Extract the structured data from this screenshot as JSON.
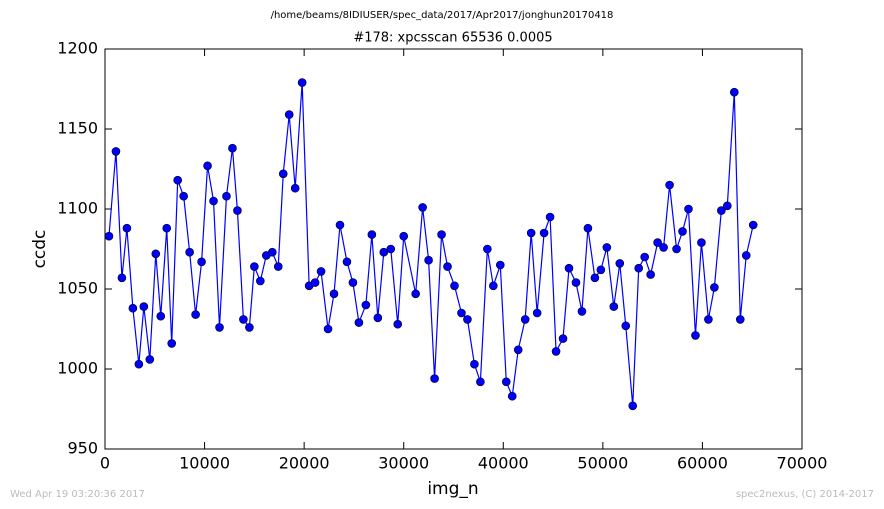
{
  "chart_data": {
    "type": "line",
    "title": "/home/beams/8IDIUSER/spec_data/2017/Apr2017/jonghun20170418",
    "subtitle": "#178: xpcsscan 65536 0.0005",
    "xlabel": "img_n",
    "ylabel": "ccdc",
    "footer_left": "Wed Apr 19 03:20:36 2017",
    "footer_right": "spec2nexus, (C) 2014-2017",
    "xlim": [
      0,
      70000
    ],
    "xticks": [
      0,
      10000,
      20000,
      30000,
      40000,
      50000,
      60000,
      70000
    ],
    "ylim": [
      950,
      1200
    ],
    "yticks": [
      950,
      1000,
      1050,
      1100,
      1150,
      1200
    ],
    "grid": false,
    "x": [
      400,
      1100,
      1700,
      2200,
      2800,
      3400,
      3900,
      4500,
      5100,
      5600,
      6200,
      6700,
      7300,
      7900,
      8500,
      9100,
      9700,
      10300,
      10900,
      11500,
      12200,
      12800,
      13300,
      13900,
      14500,
      15000,
      15600,
      16200,
      16800,
      17400,
      17900,
      18500,
      19100,
      19800,
      20500,
      21100,
      21700,
      22400,
      23000,
      23600,
      24300,
      24900,
      25500,
      26200,
      26800,
      27400,
      28000,
      28700,
      29400,
      30000,
      31200,
      31900,
      32500,
      33100,
      33800,
      34400,
      35100,
      35800,
      36400,
      37100,
      37700,
      38400,
      39000,
      39700,
      40300,
      40900,
      41500,
      42200,
      42800,
      43400,
      44100,
      44700,
      45300,
      46000,
      46600,
      47300,
      47900,
      48500,
      49200,
      49800,
      50400,
      51100,
      51700,
      52300,
      53000,
      53600,
      54200,
      54800,
      55500,
      56100,
      56700,
      57400,
      58000,
      58600,
      59300,
      59900,
      60600,
      61200,
      61900,
      62500,
      63200,
      63800,
      64400,
      65100
    ],
    "series": [
      {
        "color": "#0000ff",
        "marker_color": "#0000ff",
        "values": [
          1083,
          1136,
          1057,
          1088,
          1038,
          1003,
          1039,
          1006,
          1072,
          1033,
          1088,
          1016,
          1118,
          1108,
          1073,
          1034,
          1067,
          1127,
          1105,
          1026,
          1108,
          1138,
          1099,
          1031,
          1026,
          1064,
          1055,
          1071,
          1073,
          1064,
          1122,
          1159,
          1113,
          1179,
          1052,
          1054,
          1061,
          1025,
          1047,
          1090,
          1067,
          1054,
          1029,
          1040,
          1084,
          1032,
          1073,
          1075,
          1028,
          1083,
          1047,
          1101,
          1068,
          994,
          1084,
          1064,
          1052,
          1035,
          1031,
          1003,
          992,
          1075,
          1052,
          1065,
          992,
          983,
          1012,
          1031,
          1085,
          1035,
          1085,
          1095,
          1011,
          1019,
          1063,
          1054,
          1036,
          1088,
          1057,
          1062,
          1076,
          1039,
          1066,
          1027,
          977,
          1063,
          1070,
          1059,
          1079,
          1076,
          1115,
          1075,
          1086,
          1100,
          1021,
          1079,
          1031,
          1051,
          1099,
          1102,
          1173,
          1031,
          1071,
          1090
        ]
      }
    ]
  }
}
